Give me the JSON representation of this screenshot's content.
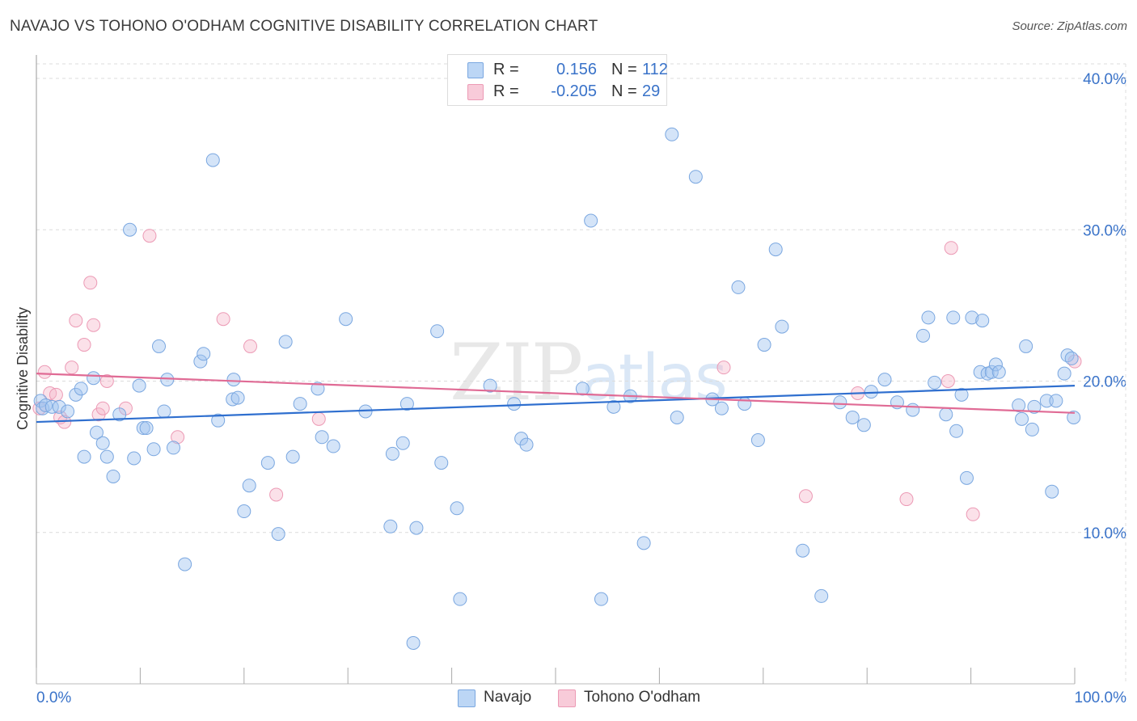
{
  "header": {
    "title": "NAVAJO VS TOHONO O'ODHAM COGNITIVE DISABILITY CORRELATION CHART",
    "source": "Source: ZipAtlas.com"
  },
  "legend": {
    "rows": [
      {
        "r_label": "R =",
        "r_value": "0.156",
        "n_label": "N =",
        "n_value": "112",
        "color": "#a8c8f0"
      },
      {
        "r_label": "R =",
        "r_value": "-0.205",
        "n_label": "N =",
        "n_value": "29",
        "color": "#f5b8cb"
      }
    ]
  },
  "bottom_legend": {
    "items": [
      {
        "label": "Navajo",
        "color": "#a8c8f0"
      },
      {
        "label": "Tohono O'odham",
        "color": "#f5b8cb"
      }
    ]
  },
  "watermark": {
    "zip": "ZIP",
    "atlas": "atlas"
  },
  "colors": {
    "navajo_fill": "rgba(160,195,240,0.45)",
    "navajo_stroke": "#7aa7e0",
    "navajo_line": "#2f6fcf",
    "tohono_fill": "rgba(245,180,200,0.40)",
    "tohono_stroke": "#ec9ab5",
    "tohono_line": "#e06b95",
    "grid": "#dcdcdc",
    "axis_label": "#3a73c9"
  },
  "chart_data": {
    "type": "scatter",
    "title": "NAVAJO VS TOHONO O'ODHAM COGNITIVE DISABILITY CORRELATION CHART",
    "xlabel": "",
    "ylabel": "Cognitive Disability",
    "xlim": [
      0,
      100
    ],
    "ylim": [
      0,
      40
    ],
    "x_tick_labels": [
      "0.0%",
      "100.0%"
    ],
    "y_ticks": [
      10,
      20,
      30,
      40
    ],
    "y_tick_labels": [
      "10.0%",
      "20.0%",
      "30.0%",
      "40.0%"
    ],
    "grid": true,
    "legend_position": "top-center",
    "series": [
      {
        "name": "Navajo",
        "r": 0.156,
        "n": 112,
        "trend": [
          [
            0,
            17.3
          ],
          [
            100,
            19.7
          ]
        ],
        "points": [
          [
            0.4,
            18.7
          ],
          [
            0.6,
            18.2
          ],
          [
            0.9,
            18.4
          ],
          [
            1.5,
            18.3
          ],
          [
            2.2,
            18.3
          ],
          [
            3.0,
            18.0
          ],
          [
            3.8,
            19.1
          ],
          [
            4.3,
            19.5
          ],
          [
            5.5,
            20.2
          ],
          [
            4.6,
            15.0
          ],
          [
            5.8,
            16.6
          ],
          [
            6.4,
            15.9
          ],
          [
            6.8,
            15.0
          ],
          [
            7.4,
            13.7
          ],
          [
            8.0,
            17.8
          ],
          [
            9.0,
            30.0
          ],
          [
            9.4,
            14.9
          ],
          [
            9.9,
            19.7
          ],
          [
            10.3,
            16.9
          ],
          [
            10.6,
            16.9
          ],
          [
            11.3,
            15.5
          ],
          [
            11.8,
            22.3
          ],
          [
            12.3,
            18.0
          ],
          [
            12.6,
            20.1
          ],
          [
            13.2,
            15.6
          ],
          [
            14.3,
            7.9
          ],
          [
            15.8,
            21.3
          ],
          [
            16.1,
            21.8
          ],
          [
            17.0,
            34.6
          ],
          [
            17.5,
            17.4
          ],
          [
            18.9,
            18.8
          ],
          [
            19.0,
            20.1
          ],
          [
            19.4,
            18.9
          ],
          [
            20.0,
            11.4
          ],
          [
            20.5,
            13.1
          ],
          [
            22.3,
            14.6
          ],
          [
            23.3,
            9.9
          ],
          [
            24.0,
            22.6
          ],
          [
            24.7,
            15.0
          ],
          [
            25.4,
            18.5
          ],
          [
            27.1,
            19.5
          ],
          [
            27.5,
            16.3
          ],
          [
            28.6,
            15.7
          ],
          [
            29.8,
            24.1
          ],
          [
            31.7,
            18.0
          ],
          [
            34.1,
            10.4
          ],
          [
            34.3,
            15.2
          ],
          [
            35.3,
            15.9
          ],
          [
            35.7,
            18.5
          ],
          [
            36.3,
            2.7
          ],
          [
            36.6,
            10.3
          ],
          [
            38.6,
            23.3
          ],
          [
            39.0,
            14.6
          ],
          [
            40.5,
            11.6
          ],
          [
            40.8,
            5.6
          ],
          [
            43.7,
            19.7
          ],
          [
            46.0,
            18.5
          ],
          [
            46.7,
            16.2
          ],
          [
            47.2,
            15.8
          ],
          [
            52.6,
            19.5
          ],
          [
            53.4,
            30.6
          ],
          [
            54.4,
            5.6
          ],
          [
            55.6,
            18.3
          ],
          [
            58.5,
            9.3
          ],
          [
            61.2,
            36.3
          ],
          [
            61.7,
            17.6
          ],
          [
            63.5,
            33.5
          ],
          [
            66.0,
            18.2
          ],
          [
            67.6,
            26.2
          ],
          [
            68.2,
            18.5
          ],
          [
            69.5,
            16.1
          ],
          [
            70.1,
            22.4
          ],
          [
            71.2,
            28.7
          ],
          [
            71.8,
            23.6
          ],
          [
            73.8,
            8.8
          ],
          [
            75.6,
            5.8
          ],
          [
            77.4,
            18.6
          ],
          [
            78.6,
            17.6
          ],
          [
            79.7,
            17.1
          ],
          [
            80.4,
            19.3
          ],
          [
            81.7,
            20.1
          ],
          [
            82.9,
            18.6
          ],
          [
            84.4,
            18.1
          ],
          [
            85.4,
            23.0
          ],
          [
            85.9,
            24.2
          ],
          [
            86.5,
            19.9
          ],
          [
            87.6,
            17.8
          ],
          [
            88.3,
            24.2
          ],
          [
            88.6,
            16.7
          ],
          [
            89.1,
            19.1
          ],
          [
            89.6,
            13.6
          ],
          [
            90.1,
            24.2
          ],
          [
            90.9,
            20.6
          ],
          [
            91.1,
            24.0
          ],
          [
            91.6,
            20.5
          ],
          [
            92.0,
            20.6
          ],
          [
            92.4,
            21.1
          ],
          [
            92.7,
            20.6
          ],
          [
            94.6,
            18.4
          ],
          [
            94.9,
            17.5
          ],
          [
            95.3,
            22.3
          ],
          [
            95.9,
            16.8
          ],
          [
            96.1,
            18.3
          ],
          [
            97.3,
            18.7
          ],
          [
            97.8,
            12.7
          ],
          [
            98.2,
            18.7
          ],
          [
            99.0,
            20.5
          ],
          [
            99.3,
            21.7
          ],
          [
            99.7,
            21.5
          ],
          [
            99.9,
            17.6
          ],
          [
            65.1,
            18.8
          ],
          [
            57.2,
            19.0
          ]
        ]
      },
      {
        "name": "Tohono O'odham",
        "r": -0.205,
        "n": 29,
        "trend": [
          [
            0,
            20.5
          ],
          [
            100,
            17.9
          ]
        ],
        "points": [
          [
            0.3,
            18.2
          ],
          [
            0.8,
            20.6
          ],
          [
            1.3,
            19.2
          ],
          [
            1.9,
            19.1
          ],
          [
            2.3,
            17.6
          ],
          [
            2.7,
            17.3
          ],
          [
            3.4,
            20.9
          ],
          [
            3.8,
            24.0
          ],
          [
            4.6,
            22.4
          ],
          [
            5.2,
            26.5
          ],
          [
            5.5,
            23.7
          ],
          [
            6.0,
            17.8
          ],
          [
            6.4,
            18.2
          ],
          [
            6.8,
            20.0
          ],
          [
            8.6,
            18.2
          ],
          [
            10.9,
            29.6
          ],
          [
            13.6,
            16.3
          ],
          [
            18.0,
            24.1
          ],
          [
            20.6,
            22.3
          ],
          [
            23.1,
            12.5
          ],
          [
            27.2,
            17.5
          ],
          [
            66.2,
            20.9
          ],
          [
            74.1,
            12.4
          ],
          [
            79.1,
            19.2
          ],
          [
            83.8,
            12.2
          ],
          [
            87.8,
            20.0
          ],
          [
            88.1,
            28.8
          ],
          [
            90.2,
            11.2
          ],
          [
            100.0,
            21.3
          ]
        ]
      }
    ]
  }
}
